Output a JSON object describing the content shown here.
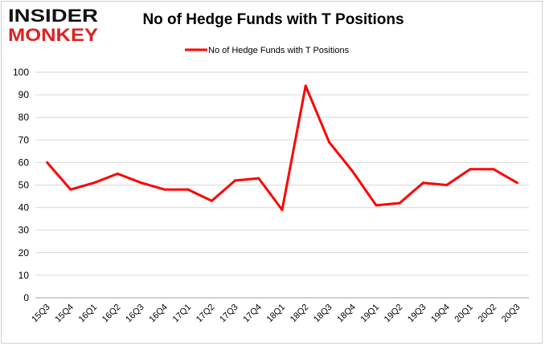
{
  "logo": {
    "line1": "INSIDER",
    "line2": "MONKEY",
    "color": "#e02020"
  },
  "chart_data": {
    "type": "line",
    "title": "No of Hedge Funds with T Positions",
    "xlabel": "",
    "ylabel": "",
    "ylim": [
      0,
      100
    ],
    "yticks": [
      0,
      10,
      20,
      30,
      40,
      50,
      60,
      70,
      80,
      90,
      100
    ],
    "grid": true,
    "legend_position": "top-center",
    "categories": [
      "15Q3",
      "15Q4",
      "16Q1",
      "16Q2",
      "16Q3",
      "16Q4",
      "17Q1",
      "17Q2",
      "17Q3",
      "17Q4",
      "18Q1",
      "18Q2",
      "18Q3",
      "18Q4",
      "19Q1",
      "19Q2",
      "19Q3",
      "19Q4",
      "20Q1",
      "20Q2",
      "20Q3"
    ],
    "series": [
      {
        "name": "No of Hedge Funds with T Positions",
        "color": "#ff0000",
        "values": [
          60,
          48,
          51,
          55,
          51,
          48,
          48,
          43,
          52,
          53,
          39,
          94,
          69,
          56,
          41,
          42,
          51,
          50,
          57,
          57,
          51
        ]
      }
    ]
  }
}
